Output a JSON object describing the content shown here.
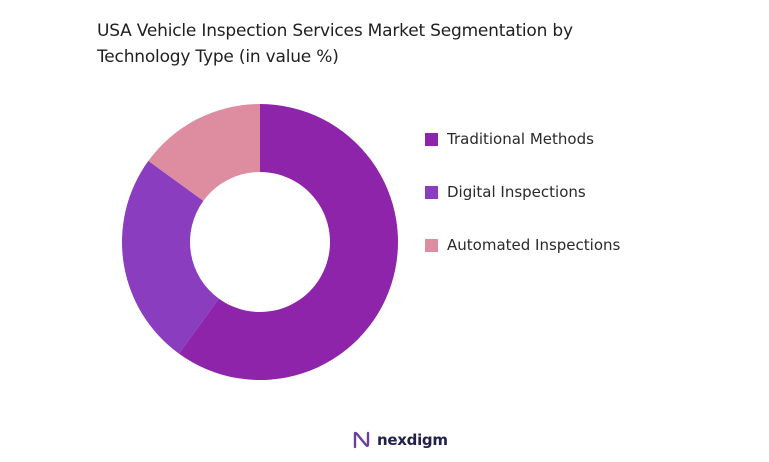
{
  "chart_data": {
    "type": "pie",
    "title_line1": "USA Vehicle Inspection Services Market Segmentation by",
    "title_line2": "Technology Type (in value %)",
    "categories": [
      "Traditional Methods",
      "Digital Inspections",
      "Automated Inspections"
    ],
    "values": [
      60,
      25,
      15
    ],
    "colors": [
      "#8E24AA",
      "#8A3DBE",
      "#DE8C9F"
    ],
    "donut": true,
    "legend_position": "right"
  },
  "brand": {
    "name": "nexdigm",
    "icon": "nexdigm-logo-icon"
  }
}
